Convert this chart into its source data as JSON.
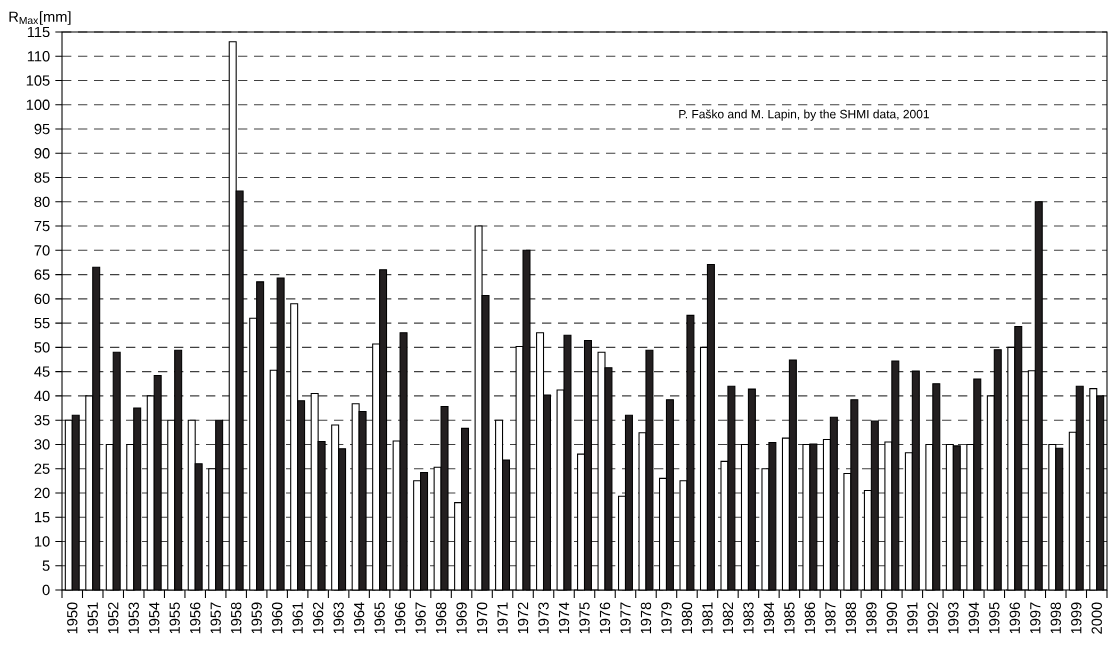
{
  "chart_data": {
    "type": "bar",
    "ylabel": "R$_{Max}$[mm]",
    "annotations": [
      "P. Faško and M. Lapin, by the SHMI data, 2001"
    ],
    "categories": [
      "1950",
      "1951",
      "1952",
      "1953",
      "1954",
      "1955",
      "1956",
      "1957",
      "1958",
      "1959",
      "1960",
      "1961",
      "1962",
      "1963",
      "1964",
      "1965",
      "1966",
      "1967",
      "1968",
      "1969",
      "1970",
      "1971",
      "1972",
      "1973",
      "1974",
      "1975",
      "1976",
      "1977",
      "1978",
      "1979",
      "1980",
      "1981",
      "1982",
      "1983",
      "1984",
      "1985",
      "1986",
      "1987",
      "1988",
      "1989",
      "1990",
      "1991",
      "1992",
      "1993",
      "1994",
      "1995",
      "1996",
      "1997",
      "1998",
      "1999",
      "2000"
    ],
    "series": [
      {
        "color": "#ffffff",
        "values": [
          35,
          40,
          30,
          30,
          40,
          35,
          35,
          25,
          113,
          56,
          45.3,
          59,
          40.5,
          34,
          38.4,
          50.7,
          30.7,
          22.5,
          25.3,
          18,
          75,
          35,
          50.2,
          53,
          41.2,
          28,
          49,
          19.3,
          32.4,
          23,
          22.5,
          50,
          26.5,
          30,
          25,
          31.3,
          30,
          31,
          24,
          20.5,
          30.5,
          28.3,
          30,
          30,
          30,
          40,
          50,
          45.2,
          30,
          32.5,
          41.5
        ]
      },
      {
        "color": "#231f20",
        "values": [
          36,
          66.5,
          49,
          37.5,
          44.2,
          49.4,
          26,
          35,
          82.2,
          63.5,
          64.3,
          39,
          30.6,
          29.1,
          36.8,
          66,
          53,
          24.2,
          37.8,
          33.3,
          60.7,
          26.8,
          70,
          40.2,
          52.5,
          51.4,
          45.8,
          36,
          49.4,
          39.2,
          56.6,
          67.1,
          42,
          41.4,
          30.4,
          47.4,
          30.1,
          35.6,
          39.2,
          34.8,
          47.2,
          45.1,
          42.5,
          29.7,
          43.5,
          49.5,
          54.3,
          80,
          29.2,
          42,
          40
        ]
      }
    ],
    "ylim": [
      0,
      115
    ],
    "yticks": [
      0,
      5,
      10,
      15,
      20,
      25,
      30,
      35,
      40,
      45,
      50,
      55,
      60,
      65,
      70,
      75,
      80,
      85,
      90,
      95,
      100,
      105,
      110,
      115
    ],
    "grid": "y"
  }
}
